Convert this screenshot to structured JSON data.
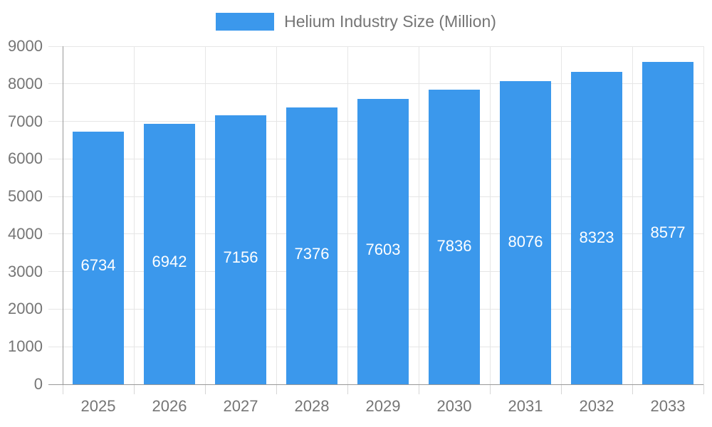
{
  "legend": {
    "label": "Helium Industry Size (Million)"
  },
  "chart_data": {
    "type": "bar",
    "title": "Helium Industry Size (Million)",
    "categories": [
      "2025",
      "2026",
      "2027",
      "2028",
      "2029",
      "2030",
      "2031",
      "2032",
      "2033"
    ],
    "values": [
      6734,
      6942,
      7156,
      7376,
      7603,
      7836,
      8076,
      8323,
      8577
    ],
    "series": [
      {
        "name": "Helium Industry Size (Million)",
        "values": [
          6734,
          6942,
          7156,
          7376,
          7603,
          7836,
          8076,
          8323,
          8577
        ]
      }
    ],
    "xlabel": "",
    "ylabel": "",
    "ylim": [
      0,
      9000
    ],
    "yticks": [
      0,
      1000,
      2000,
      3000,
      4000,
      5000,
      6000,
      7000,
      8000,
      9000
    ],
    "grid": true,
    "legend_position": "top",
    "value_label_position": "inside"
  },
  "colors": {
    "bar": "#3B98EC",
    "grid": "#E6E6E6",
    "axis": "#999999",
    "tick_text": "#757575",
    "legend_text": "#757575",
    "value_text": "#FFFFFF",
    "background": "#FFFFFF"
  }
}
